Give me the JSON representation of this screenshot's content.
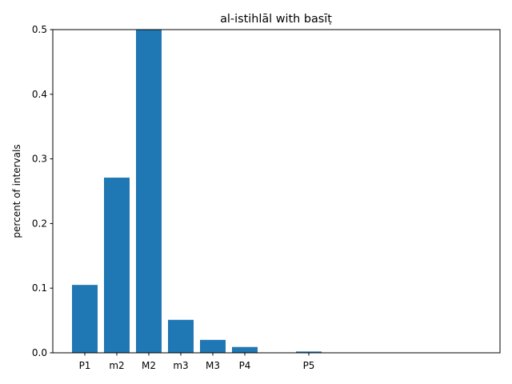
{
  "chart_data": {
    "type": "bar",
    "title": "al-istihlāl with basīṭ",
    "xlabel": "",
    "ylabel": "percent of intervals",
    "categories": [
      "P1",
      "m2",
      "M2",
      "m3",
      "M3",
      "P4",
      "",
      "P5",
      "",
      "",
      "",
      "",
      ""
    ],
    "values": [
      0.105,
      0.271,
      0.5,
      0.051,
      0.02,
      0.009,
      0,
      0.002,
      0,
      0,
      0,
      0,
      0
    ],
    "ylim": [
      0,
      0.5
    ],
    "yticks": [
      0.0,
      0.1,
      0.2,
      0.3,
      0.4,
      0.5
    ],
    "ytick_labels": [
      "0.0",
      "0.1",
      "0.2",
      "0.3",
      "0.4",
      "0.5"
    ],
    "bar_color": "#1f77b4",
    "grid": false,
    "legend": "none"
  }
}
